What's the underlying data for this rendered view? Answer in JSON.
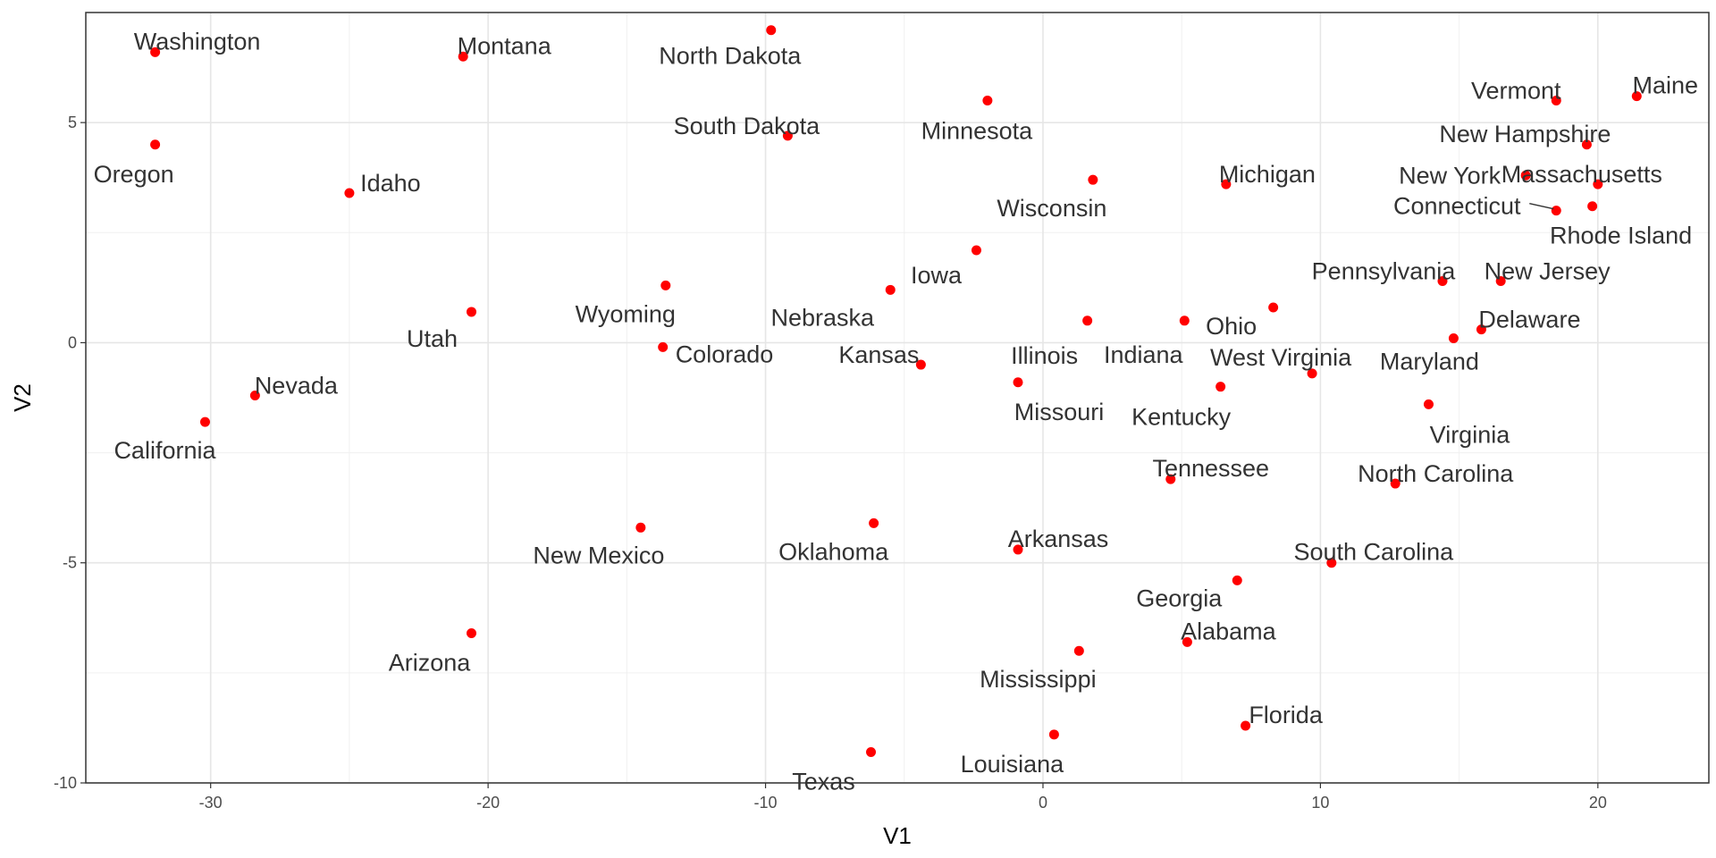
{
  "chart_data": {
    "type": "scatter",
    "xlabel": "V1",
    "ylabel": "V2",
    "xlim": [
      -34.5,
      24
    ],
    "ylim": [
      -10,
      7.5
    ],
    "xticks": [
      -30,
      -20,
      -10,
      0,
      10,
      20
    ],
    "yticks": [
      -10,
      -5,
      0,
      5
    ],
    "grid": true,
    "point_color": "#ff0000",
    "points": [
      {
        "label": "Washington",
        "x": -32.0,
        "y": 6.6
      },
      {
        "label": "Montana",
        "x": -20.9,
        "y": 6.5
      },
      {
        "label": "North Dakota",
        "x": -9.8,
        "y": 7.1
      },
      {
        "label": "Oregon",
        "x": -32.0,
        "y": 4.5
      },
      {
        "label": "Idaho",
        "x": -25.0,
        "y": 3.4
      },
      {
        "label": "South Dakota",
        "x": -9.2,
        "y": 4.7
      },
      {
        "label": "Minnesota",
        "x": -2.0,
        "y": 5.5
      },
      {
        "label": "Wisconsin",
        "x": 1.8,
        "y": 3.7
      },
      {
        "label": "Michigan",
        "x": 6.6,
        "y": 3.6
      },
      {
        "label": "Vermont",
        "x": 18.5,
        "y": 5.5
      },
      {
        "label": "Maine",
        "x": 21.4,
        "y": 5.6
      },
      {
        "label": "New Hampshire",
        "x": 19.6,
        "y": 4.5
      },
      {
        "label": "New York",
        "x": 17.4,
        "y": 3.8
      },
      {
        "label": "Massachusetts",
        "x": 20.0,
        "y": 3.6
      },
      {
        "label": "Connecticut",
        "x": 18.5,
        "y": 3.0
      },
      {
        "label": "Rhode Island",
        "x": 19.8,
        "y": 3.1
      },
      {
        "label": "Iowa",
        "x": -2.4,
        "y": 2.1
      },
      {
        "label": "Nebraska",
        "x": -5.5,
        "y": 1.2
      },
      {
        "label": "Wyoming",
        "x": -13.6,
        "y": 1.3
      },
      {
        "label": "Utah",
        "x": -20.6,
        "y": 0.7
      },
      {
        "label": "Colorado",
        "x": -13.7,
        "y": -0.1
      },
      {
        "label": "Pennsylvania",
        "x": 14.4,
        "y": 1.4
      },
      {
        "label": "New Jersey",
        "x": 16.5,
        "y": 1.4
      },
      {
        "label": "Delaware",
        "x": 15.8,
        "y": 0.3
      },
      {
        "label": "Ohio",
        "x": 8.3,
        "y": 0.8
      },
      {
        "label": "Indiana",
        "x": 5.1,
        "y": 0.5
      },
      {
        "label": "Illinois",
        "x": 1.6,
        "y": 0.5
      },
      {
        "label": "Maryland",
        "x": 14.8,
        "y": 0.1
      },
      {
        "label": "Kansas",
        "x": -4.4,
        "y": -0.5
      },
      {
        "label": "Missouri",
        "x": -0.9,
        "y": -0.9
      },
      {
        "label": "West Virginia",
        "x": 9.7,
        "y": -0.7
      },
      {
        "label": "Kentucky",
        "x": 6.4,
        "y": -1.0
      },
      {
        "label": "Nevada",
        "x": -28.4,
        "y": -1.2
      },
      {
        "label": "California",
        "x": -30.2,
        "y": -1.8
      },
      {
        "label": "Virginia",
        "x": 13.9,
        "y": -1.4
      },
      {
        "label": "Tennessee",
        "x": 4.6,
        "y": -3.1
      },
      {
        "label": "North Carolina",
        "x": 12.7,
        "y": -3.2
      },
      {
        "label": "New Mexico",
        "x": -14.5,
        "y": -4.2
      },
      {
        "label": "Oklahoma",
        "x": -6.1,
        "y": -4.1
      },
      {
        "label": "Arkansas",
        "x": -0.9,
        "y": -4.7
      },
      {
        "label": "South Carolina",
        "x": 10.4,
        "y": -5.0
      },
      {
        "label": "Georgia",
        "x": 7.0,
        "y": -5.4
      },
      {
        "label": "Arizona",
        "x": -20.6,
        "y": -6.6
      },
      {
        "label": "Mississippi",
        "x": 1.3,
        "y": -7.0
      },
      {
        "label": "Alabama",
        "x": 5.2,
        "y": -6.8
      },
      {
        "label": "Florida",
        "x": 7.3,
        "y": -8.7
      },
      {
        "label": "Louisiana",
        "x": 0.4,
        "y": -8.9
      },
      {
        "label": "Texas",
        "x": -6.2,
        "y": -9.3
      }
    ]
  }
}
